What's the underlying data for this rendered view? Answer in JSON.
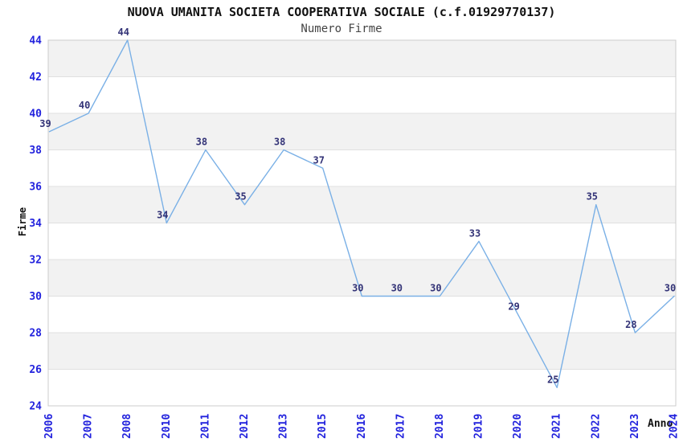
{
  "chart": {
    "title": "NUOVA UMANITA SOCIETA COOPERATIVA SOCIALE (c.f.01929770137)",
    "subtitle": "Numero Firme"
  },
  "chart_data": {
    "type": "line",
    "title": "NUOVA UMANITA SOCIETA COOPERATIVA SOCIALE (c.f.01929770137)",
    "subtitle": "Numero Firme",
    "xlabel": "Anno",
    "ylabel": "Firme",
    "categories": [
      "2006",
      "2007",
      "2008",
      "2010",
      "2011",
      "2012",
      "2013",
      "2015",
      "2016",
      "2017",
      "2018",
      "2019",
      "2020",
      "2021",
      "2022",
      "2023",
      "2024"
    ],
    "values": [
      39,
      40,
      44,
      34,
      38,
      35,
      38,
      37,
      30,
      30,
      30,
      33,
      29,
      25,
      35,
      28,
      30
    ],
    "ylim": [
      24,
      44
    ],
    "ytick_step": 2,
    "yticks": [
      24,
      26,
      28,
      30,
      32,
      34,
      36,
      38,
      40,
      42,
      44
    ],
    "grid": "alternating-horizontal-bands",
    "legend": "none",
    "data_labels": true,
    "x_tick_rotation": -90,
    "colors": {
      "line": "#7ab0e6",
      "data_label": "#333377",
      "tick_label": "#2222dd",
      "band": "#f2f2f2",
      "gridline": "#e0e0e0",
      "plot_border": "#cccccc",
      "title": "#111111",
      "subtitle": "#444444",
      "axis_title": "#111111"
    }
  }
}
